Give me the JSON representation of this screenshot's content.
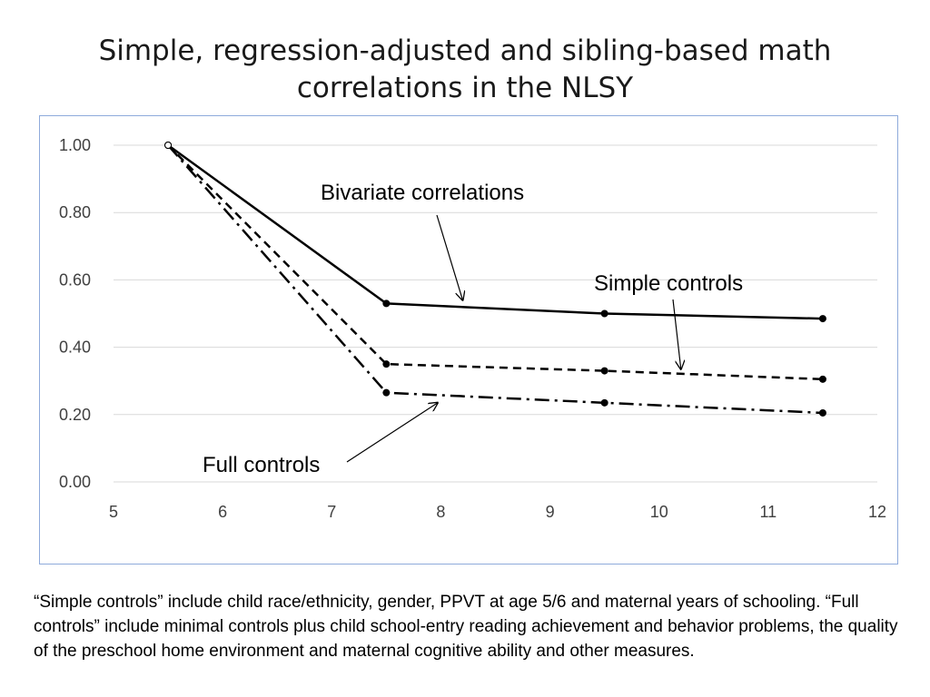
{
  "slide": {
    "title_line1": "Simple, regression-adjusted and sibling-based math",
    "title_line2": "correlations in the NLSY",
    "footnote": "“Simple controls” include child race/ethnicity, gender, PPVT at age 5/6  and maternal years of schooling. “Full controls” include minimal controls plus child school-entry reading achievement and behavior problems, the quality of the preschool home environment and maternal cognitive ability and other measures."
  },
  "colors": {
    "chart_border": "#8eaadb",
    "gridline": "#d9d9d9",
    "series": "#000000",
    "tick_text": "#404040"
  },
  "chart_data": {
    "type": "line",
    "title": "",
    "xlabel": "",
    "ylabel": "",
    "xlim": [
      5,
      12
    ],
    "ylim": [
      0,
      1
    ],
    "x_ticks": [
      "5",
      "6",
      "7",
      "8",
      "9",
      "10",
      "11",
      "12"
    ],
    "y_ticks": [
      "0.00",
      "0.20",
      "0.40",
      "0.60",
      "0.80",
      "1.00"
    ],
    "grid": "horizontal",
    "legend": "none",
    "series": [
      {
        "style": "solid",
        "x": [
          5.5,
          7.5,
          9.5,
          11.5
        ],
        "y": [
          1.0,
          0.53,
          0.5,
          0.485
        ]
      },
      {
        "style": "dashed",
        "x": [
          5.5,
          7.5,
          9.5,
          11.5
        ],
        "y": [
          1.0,
          0.35,
          0.33,
          0.305
        ]
      },
      {
        "style": "dash-dot",
        "x": [
          5.5,
          7.5,
          9.5,
          11.5
        ],
        "y": [
          1.0,
          0.265,
          0.235,
          0.205
        ]
      }
    ],
    "annotations": [
      {
        "text": "Bivariate correlations",
        "points_to": {
          "x": 8.2,
          "y": 0.54
        }
      },
      {
        "text": "Simple controls",
        "points_to": {
          "x": 10.2,
          "y": 0.335
        }
      },
      {
        "text": "Full controls",
        "points_to": {
          "x": 7.97,
          "y": 0.235
        }
      }
    ]
  }
}
